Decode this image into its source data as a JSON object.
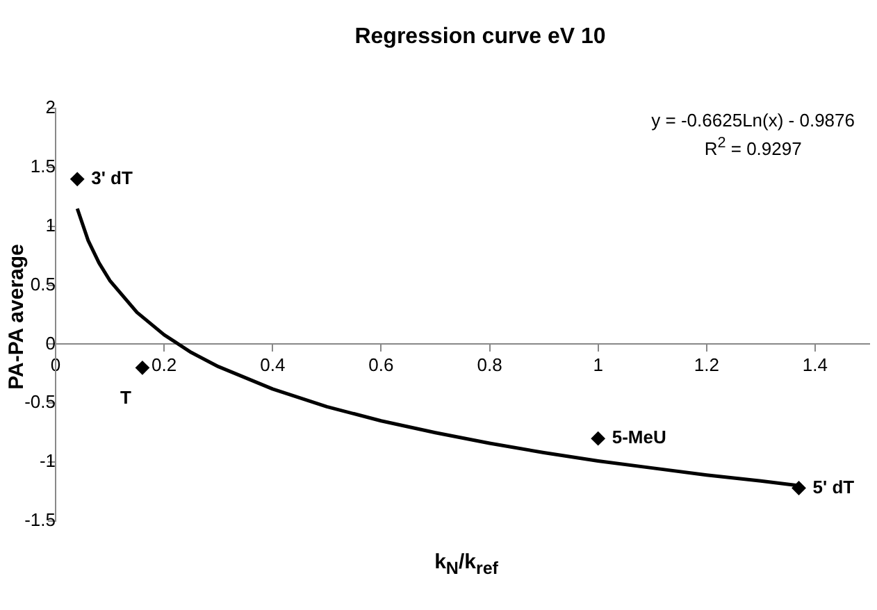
{
  "chart_data": {
    "type": "scatter",
    "title": "Regression curve eV 10",
    "xlabel": "k$_{N}$/k$_{ref}$",
    "ylabel": "PA-PA average",
    "xlim": [
      0,
      1.5
    ],
    "xticks": [
      0,
      0.2,
      0.4,
      0.6,
      0.8,
      1,
      1.2,
      1.4
    ],
    "ylim": [
      -1.5,
      2
    ],
    "yticks": [
      -1.5,
      -1,
      -0.5,
      0,
      0.5,
      1,
      1.5,
      2
    ],
    "grid": false,
    "legend": false,
    "marker": "diamond",
    "series": [
      {
        "type": "scatter",
        "color": "#000000",
        "x": [
          0.04,
          0.16,
          1,
          1.37
        ],
        "values": [
          1.4,
          -0.2,
          -0.8,
          -1.22
        ]
      },
      {
        "type": "line",
        "color": "#000000",
        "marker": "none",
        "line_style": "solid",
        "x": [
          0.04,
          0.06,
          0.08,
          0.1,
          0.15,
          0.2,
          0.25,
          0.3,
          0.4,
          0.5,
          0.6,
          0.7,
          0.8,
          0.9,
          1,
          1.1,
          1.2,
          1.3,
          1.37
        ],
        "values": [
          1.15,
          0.88,
          0.69,
          0.54,
          0.27,
          0.08,
          -0.07,
          -0.19,
          -0.38,
          -0.53,
          -0.65,
          -0.75,
          -0.84,
          -0.92,
          -0.99,
          -1.05,
          -1.11,
          -1.16,
          -1.2
        ]
      }
    ],
    "annotations": [
      {
        "text": "3' dT",
        "x": 0.04,
        "y": 1.4
      },
      {
        "text": "T",
        "x": 0.16,
        "y": -0.2
      },
      {
        "text": "5-MeU",
        "x": 1,
        "y": -0.8
      },
      {
        "text": "5' dT",
        "x": 1.37,
        "y": -1.22
      },
      "y = -0.6625Ln(x) - 0.9876",
      "R$^{2}$ = 0.9297"
    ]
  }
}
